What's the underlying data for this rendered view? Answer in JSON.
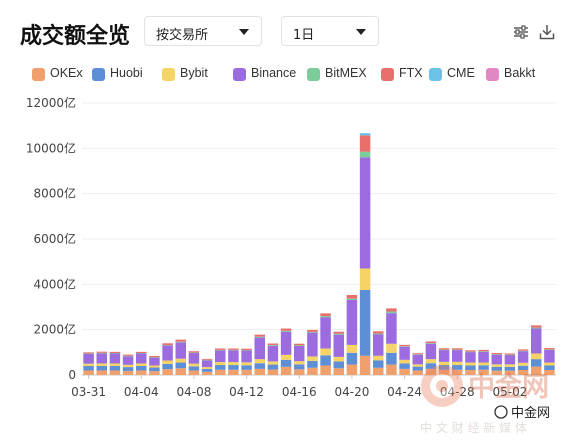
{
  "header": {
    "title": "成交额全览"
  },
  "controls": {
    "exchange_select": {
      "value": "按交易所"
    },
    "period_select": {
      "value": "1日"
    },
    "icons": [
      "filter-settings-icon",
      "download-icon"
    ]
  },
  "watermark": {
    "logo_text": "中金网",
    "sub_text": "中 文 财 经 新 媒 体",
    "wechat_text": "中金网"
  },
  "chart_data": {
    "type": "bar",
    "stacked": true,
    "y_unit": "亿",
    "ylim": [
      0,
      12000
    ],
    "y_ticks": [
      0,
      2000,
      4000,
      6000,
      8000,
      10000,
      12000
    ],
    "y_tick_labels": [
      "0",
      "2000亿",
      "4000亿",
      "6000亿",
      "8000亿",
      "10000亿",
      "12000亿"
    ],
    "grid": true,
    "legend_position": "top",
    "categories": [
      "03-31",
      "04-01",
      "04-02",
      "04-03",
      "04-04",
      "04-05",
      "04-06",
      "04-07",
      "04-08",
      "04-09",
      "04-10",
      "04-11",
      "04-12",
      "04-13",
      "04-14",
      "04-15",
      "04-16",
      "04-17",
      "04-18",
      "04-19",
      "04-20",
      "04-21",
      "04-22",
      "04-23",
      "04-24",
      "04-25",
      "04-26",
      "04-27",
      "04-28",
      "04-29",
      "04-30",
      "05-01",
      "05-02",
      "05-03",
      "05-04",
      "05-05"
    ],
    "x_tick_labels": [
      "03-31",
      "04-04",
      "04-08",
      "04-12",
      "04-16",
      "04-20",
      "04-24",
      "04-28",
      "05-02"
    ],
    "series": [
      {
        "name": "OKEx",
        "color": "#f0a06c",
        "values": [
          200,
          200,
          200,
          180,
          200,
          170,
          260,
          300,
          200,
          140,
          230,
          230,
          230,
          270,
          240,
          360,
          250,
          320,
          420,
          300,
          460,
          850,
          320,
          460,
          270,
          200,
          270,
          230,
          230,
          220,
          230,
          190,
          190,
          220,
          370,
          220
        ]
      },
      {
        "name": "Huobi",
        "color": "#5e8fd6",
        "values": [
          200,
          200,
          200,
          170,
          200,
          160,
          230,
          250,
          180,
          130,
          210,
          210,
          200,
          250,
          220,
          310,
          220,
          300,
          450,
          300,
          520,
          2900,
          330,
          520,
          240,
          170,
          250,
          210,
          210,
          200,
          200,
          170,
          170,
          190,
          330,
          200
        ]
      },
      {
        "name": "Bybit",
        "color": "#f6d365",
        "values": [
          100,
          110,
          110,
          100,
          110,
          90,
          150,
          170,
          120,
          80,
          130,
          130,
          130,
          180,
          140,
          220,
          140,
          200,
          300,
          200,
          350,
          950,
          200,
          400,
          160,
          100,
          180,
          140,
          140,
          130,
          120,
          110,
          110,
          130,
          250,
          130
        ]
      },
      {
        "name": "Binance",
        "color": "#9b6bdf",
        "values": [
          430,
          450,
          440,
          380,
          440,
          350,
          660,
          720,
          470,
          300,
          520,
          520,
          520,
          950,
          690,
          1020,
          670,
          1050,
          1380,
          980,
          1980,
          4900,
          950,
          1350,
          580,
          420,
          680,
          520,
          520,
          460,
          480,
          430,
          410,
          510,
          1100,
          560
        ]
      },
      {
        "name": "BitMEX",
        "color": "#7ccc9c",
        "values": [
          20,
          20,
          20,
          20,
          20,
          20,
          20,
          30,
          20,
          20,
          20,
          20,
          20,
          40,
          30,
          40,
          30,
          30,
          50,
          40,
          60,
          250,
          30,
          70,
          20,
          20,
          30,
          20,
          20,
          20,
          20,
          20,
          20,
          20,
          40,
          20
        ]
      },
      {
        "name": "FTX",
        "color": "#e8706c",
        "values": [
          50,
          50,
          50,
          50,
          50,
          50,
          80,
          90,
          60,
          40,
          60,
          60,
          60,
          90,
          70,
          100,
          70,
          90,
          120,
          90,
          160,
          720,
          100,
          140,
          60,
          50,
          70,
          60,
          60,
          60,
          60,
          50,
          50,
          60,
          100,
          60
        ]
      },
      {
        "name": "CME",
        "color": "#6bc3e8",
        "values": [
          0,
          0,
          0,
          0,
          0,
          0,
          0,
          0,
          0,
          0,
          0,
          0,
          0,
          0,
          0,
          0,
          0,
          0,
          0,
          0,
          0,
          100,
          0,
          0,
          0,
          0,
          0,
          0,
          0,
          0,
          0,
          0,
          0,
          0,
          0,
          0
        ]
      },
      {
        "name": "Bakkt",
        "color": "#e188c3",
        "values": [
          0,
          0,
          0,
          0,
          0,
          0,
          0,
          0,
          0,
          0,
          0,
          0,
          0,
          0,
          0,
          0,
          0,
          0,
          0,
          0,
          0,
          0,
          0,
          0,
          0,
          0,
          0,
          0,
          0,
          0,
          0,
          0,
          0,
          0,
          0,
          0
        ]
      }
    ]
  }
}
